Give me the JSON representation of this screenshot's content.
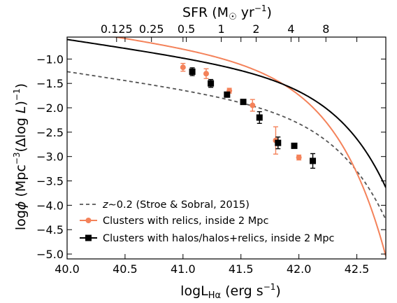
{
  "chart_data": {
    "type": "line",
    "xlabel": "logL",
    "xlabel_sub": "Hα",
    "xlabel_unit": "(erg s",
    "xlabel_unit_sup": "−1",
    "xlabel_unit_close": ")",
    "ylabel": "log",
    "ylabel_phi": "ϕ",
    "ylabel_mid": " (Mpc",
    "ylabel_sup": "−3",
    "ylabel_mid2": "(Δlog ",
    "ylabel_L": "L",
    "ylabel_end": ")",
    "ylabel_sup2": "−1",
    "ylabel_close": ")",
    "top_xlabel": "SFR (M",
    "top_xlabel_sun": "☉",
    "top_xlabel_unit": " yr",
    "top_xlabel_sup": "−1",
    "top_xlabel_close": ")",
    "xlim": [
      40.0,
      42.75
    ],
    "ylim": [
      -5.1,
      -0.55
    ],
    "x_ticks": [
      40.0,
      40.5,
      41.0,
      41.5,
      42.0,
      42.5
    ],
    "x_tick_labels": [
      "40.0",
      "40.5",
      "41.0",
      "41.5",
      "42.0",
      "42.5"
    ],
    "y_ticks": [
      -1.0,
      -1.5,
      -2.0,
      -2.5,
      -3.0,
      -3.5,
      -4.0,
      -4.5,
      -5.0
    ],
    "y_tick_labels": [
      "−1.0",
      "−1.5",
      "−2.0",
      "−2.5",
      "−3.0",
      "−3.5",
      "−4.0",
      "−4.5",
      "−5.0"
    ],
    "top_ticks": [
      0.125,
      0.25,
      0.5,
      1,
      2,
      4,
      8
    ],
    "top_tick_labels": [
      "0.125",
      "0.25",
      "0.5",
      "1",
      "2",
      "4",
      "8"
    ],
    "sfr_conversion_offset": 41.33,
    "legend_position": "lower-left",
    "curves": [
      {
        "name_prefix": "z",
        "name_tilde": "∼0.2",
        "name_rest": " (Stroe & Sobral, 2015)",
        "style": "dashed",
        "color": "#555555",
        "phi_star": -1.98,
        "L_star": 42.07,
        "alpha": -1.35
      },
      {
        "name": "Clusters with relics, inside 2 Mpc",
        "style": "solid",
        "color": "#f4825a",
        "phi_star": -1.02,
        "L_star": 41.82,
        "alpha": -1.35
      },
      {
        "name": "Clusters with halos/halos+relics, inside 2 Mpc",
        "style": "solid",
        "color": "#000000",
        "phi_star": -1.32,
        "L_star": 42.07,
        "alpha": -1.35
      }
    ],
    "series": [
      {
        "name": "Clusters with relics, inside 2 Mpc",
        "marker": "circle",
        "color": "#f4825a",
        "points": [
          {
            "x": 41.0,
            "y": -1.17,
            "err": 0.08
          },
          {
            "x": 41.2,
            "y": -1.3,
            "err": 0.1
          },
          {
            "x": 41.4,
            "y": -1.65,
            "err": 0.05
          },
          {
            "x": 41.6,
            "y": -1.95,
            "err": 0.12
          },
          {
            "x": 41.8,
            "y": -2.67,
            "err": 0.28
          },
          {
            "x": 42.0,
            "y": -3.02,
            "err": 0.05
          }
        ]
      },
      {
        "name": "Clusters with halos/halos+relics, inside 2 Mpc",
        "marker": "square",
        "color": "#000000",
        "points": [
          {
            "x": 41.08,
            "y": -1.26,
            "err": 0.08
          },
          {
            "x": 41.24,
            "y": -1.5,
            "err": 0.08
          },
          {
            "x": 41.38,
            "y": -1.73,
            "err": 0.03
          },
          {
            "x": 41.52,
            "y": -1.88,
            "err": 0.04
          },
          {
            "x": 41.66,
            "y": -2.2,
            "err": 0.12
          },
          {
            "x": 41.82,
            "y": -2.72,
            "err": 0.12
          },
          {
            "x": 41.96,
            "y": -2.78,
            "err": 0.05
          },
          {
            "x": 42.12,
            "y": -3.09,
            "err": 0.15
          }
        ]
      }
    ]
  }
}
